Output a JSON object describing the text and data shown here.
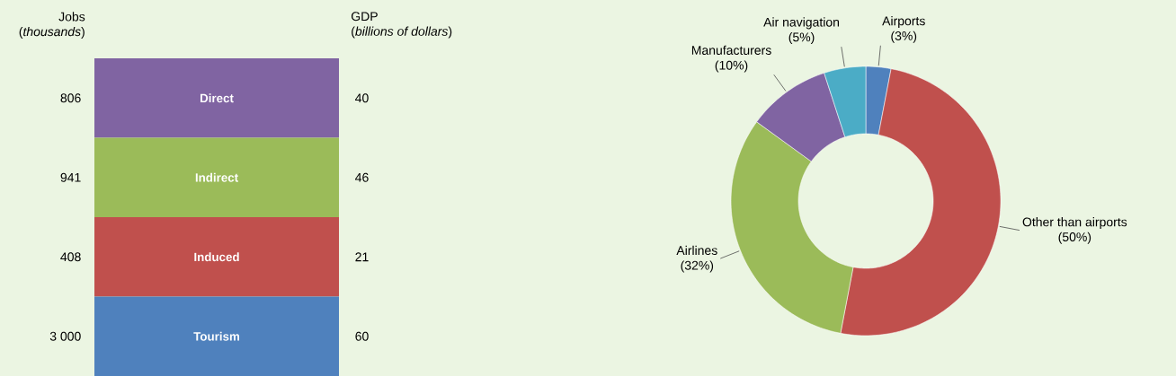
{
  "chart_data": [
    {
      "type": "other",
      "data_labels": true,
      "ylabel": "Jobs",
      "y2label": "GDP",
      "annotations": [
        "(*thousands*)",
        "(*billions of dollars*)"
      ],
      "categories": [
        "Direct",
        "Indirect",
        "Induced",
        "Tourism"
      ],
      "colors": [
        "#8064a2",
        "#9bbb59",
        "#c0504d",
        "#4f81bd"
      ],
      "series": [
        {
          "values": [
            806,
            941,
            408,
            3000
          ]
        },
        {
          "axis": "y2",
          "values": [
            40,
            46,
            21,
            60
          ]
        }
      ]
    },
    {
      "type": "donut",
      "categories": [
        "Airports",
        "Other than airports",
        "Airlines",
        "Manufacturers",
        "Air navigation"
      ],
      "values": [
        3,
        50,
        32,
        10,
        5
      ],
      "value_labels": [
        "(3%)",
        "(50%)",
        "(32%)",
        "(10%)",
        "(5%)"
      ],
      "colors": [
        "#4f81bd",
        "#c0504d",
        "#9bbb59",
        "#8064a2",
        "#4bacc6"
      ]
    }
  ]
}
